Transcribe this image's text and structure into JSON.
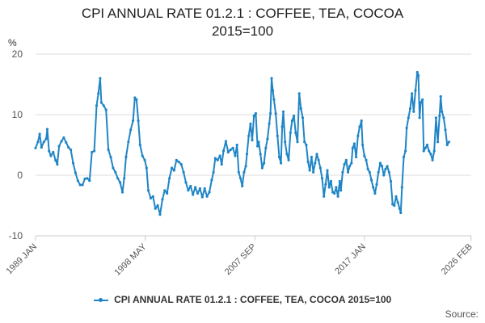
{
  "chart_data": {
    "type": "line",
    "title_line1": "CPI ANNUAL RATE 01.2.1 : COFFEE, TEA, COCOA",
    "title_line2": "2015=100",
    "ylabel": "%",
    "ylim": [
      -10,
      20
    ],
    "yticks": [
      {
        "value": -10,
        "label": "-10"
      },
      {
        "value": 0,
        "label": "0"
      },
      {
        "value": 10,
        "label": "10"
      },
      {
        "value": 20,
        "label": "20"
      }
    ],
    "xlim": [
      1989.0,
      2026.1
    ],
    "xticks": [
      {
        "value": 1989.0,
        "label": "1989 JAN"
      },
      {
        "value": 1998.33,
        "label": "1998 MAY"
      },
      {
        "value": 2007.67,
        "label": "2007 SEP"
      },
      {
        "value": 2017.0,
        "label": "2017 JAN"
      },
      {
        "value": 2026.08,
        "label": "2026 FEB"
      }
    ],
    "series": [
      {
        "name": "CPI ANNUAL RATE 01.2.1 : COFFEE, TEA, COCOA 2015=100",
        "color": "#1f85c6",
        "points": [
          [
            1989.0,
            4.5
          ],
          [
            1989.2,
            5.5
          ],
          [
            1989.35,
            6.8
          ],
          [
            1989.5,
            4.6
          ],
          [
            1989.7,
            5.5
          ],
          [
            1989.9,
            6.0
          ],
          [
            1990.0,
            7.6
          ],
          [
            1990.15,
            4.0
          ],
          [
            1990.3,
            3.2
          ],
          [
            1990.5,
            3.8
          ],
          [
            1990.7,
            2.5
          ],
          [
            1990.85,
            1.8
          ],
          [
            1991.0,
            4.8
          ],
          [
            1991.2,
            5.6
          ],
          [
            1991.4,
            6.2
          ],
          [
            1991.6,
            5.4
          ],
          [
            1991.8,
            4.6
          ],
          [
            1992.0,
            4.2
          ],
          [
            1992.2,
            2.0
          ],
          [
            1992.4,
            0.4
          ],
          [
            1992.6,
            -0.9
          ],
          [
            1992.8,
            -1.6
          ],
          [
            1993.0,
            -1.6
          ],
          [
            1993.2,
            -0.6
          ],
          [
            1993.4,
            -0.5
          ],
          [
            1993.6,
            -0.9
          ],
          [
            1993.8,
            3.8
          ],
          [
            1994.0,
            4.0
          ],
          [
            1994.2,
            11.5
          ],
          [
            1994.35,
            13.5
          ],
          [
            1994.5,
            16.0
          ],
          [
            1994.6,
            12.0
          ],
          [
            1994.8,
            11.5
          ],
          [
            1995.0,
            10.8
          ],
          [
            1995.2,
            4.2
          ],
          [
            1995.4,
            3.0
          ],
          [
            1995.6,
            1.2
          ],
          [
            1995.8,
            0.5
          ],
          [
            1996.0,
            -0.5
          ],
          [
            1996.2,
            -1.2
          ],
          [
            1996.4,
            -2.8
          ],
          [
            1996.55,
            -0.5
          ],
          [
            1996.7,
            3.0
          ],
          [
            1996.9,
            5.5
          ],
          [
            1997.1,
            7.5
          ],
          [
            1997.3,
            9.0
          ],
          [
            1997.45,
            12.8
          ],
          [
            1997.6,
            12.5
          ],
          [
            1997.75,
            9.0
          ],
          [
            1997.9,
            5.0
          ],
          [
            1998.1,
            3.2
          ],
          [
            1998.3,
            2.5
          ],
          [
            1998.45,
            1.2
          ],
          [
            1998.6,
            -2.5
          ],
          [
            1998.8,
            -3.8
          ],
          [
            1999.0,
            -3.5
          ],
          [
            1999.2,
            -5.5
          ],
          [
            1999.4,
            -5.0
          ],
          [
            1999.6,
            -6.5
          ],
          [
            1999.8,
            -4.0
          ],
          [
            2000.0,
            -2.5
          ],
          [
            2000.2,
            -3.0
          ],
          [
            2000.4,
            -0.5
          ],
          [
            2000.6,
            1.2
          ],
          [
            2000.8,
            0.8
          ],
          [
            2001.0,
            2.5
          ],
          [
            2001.2,
            2.2
          ],
          [
            2001.4,
            1.8
          ],
          [
            2001.6,
            0.5
          ],
          [
            2001.8,
            -1.2
          ],
          [
            2002.0,
            -2.5
          ],
          [
            2002.2,
            -1.8
          ],
          [
            2002.4,
            -3.2
          ],
          [
            2002.6,
            -2.0
          ],
          [
            2002.8,
            -3.0
          ],
          [
            2003.0,
            -2.2
          ],
          [
            2003.2,
            -3.6
          ],
          [
            2003.4,
            -2.2
          ],
          [
            2003.6,
            -3.5
          ],
          [
            2003.8,
            -2.8
          ],
          [
            2004.0,
            -0.8
          ],
          [
            2004.15,
            0.5
          ],
          [
            2004.3,
            2.8
          ],
          [
            2004.5,
            2.5
          ],
          [
            2004.7,
            3.2
          ],
          [
            2004.85,
            1.8
          ],
          [
            2005.0,
            4.0
          ],
          [
            2005.2,
            5.6
          ],
          [
            2005.4,
            3.8
          ],
          [
            2005.6,
            4.2
          ],
          [
            2005.8,
            4.5
          ],
          [
            2006.0,
            3.2
          ],
          [
            2006.15,
            5.0
          ],
          [
            2006.3,
            0.5
          ],
          [
            2006.45,
            -0.5
          ],
          [
            2006.6,
            -1.8
          ],
          [
            2006.75,
            0.5
          ],
          [
            2006.9,
            1.5
          ],
          [
            2007.0,
            3.5
          ],
          [
            2007.15,
            6.5
          ],
          [
            2007.3,
            8.5
          ],
          [
            2007.45,
            5.8
          ],
          [
            2007.6,
            9.8
          ],
          [
            2007.75,
            10.2
          ],
          [
            2007.9,
            4.8
          ],
          [
            2008.0,
            5.5
          ],
          [
            2008.15,
            3.5
          ],
          [
            2008.3,
            1.2
          ],
          [
            2008.45,
            2.0
          ],
          [
            2008.6,
            4.5
          ],
          [
            2008.75,
            6.0
          ],
          [
            2008.9,
            8.5
          ],
          [
            2009.0,
            10.2
          ],
          [
            2009.1,
            16.0
          ],
          [
            2009.2,
            14.0
          ],
          [
            2009.3,
            12.5
          ],
          [
            2009.45,
            10.2
          ],
          [
            2009.6,
            6.5
          ],
          [
            2009.75,
            3.0
          ],
          [
            2009.9,
            2.0
          ],
          [
            2010.0,
            8.0
          ],
          [
            2010.1,
            10.5
          ],
          [
            2010.25,
            5.5
          ],
          [
            2010.4,
            3.5
          ],
          [
            2010.55,
            2.5
          ],
          [
            2010.7,
            7.0
          ],
          [
            2010.85,
            9.0
          ],
          [
            2011.0,
            9.8
          ],
          [
            2011.15,
            7.0
          ],
          [
            2011.3,
            5.5
          ],
          [
            2011.45,
            13.5
          ],
          [
            2011.6,
            11.0
          ],
          [
            2011.75,
            9.5
          ],
          [
            2011.9,
            5.5
          ],
          [
            2012.05,
            5.0
          ],
          [
            2012.2,
            2.2
          ],
          [
            2012.35,
            0.8
          ],
          [
            2012.5,
            3.0
          ],
          [
            2012.65,
            0.5
          ],
          [
            2012.8,
            2.0
          ],
          [
            2012.95,
            3.5
          ],
          [
            2013.1,
            2.5
          ],
          [
            2013.25,
            1.2
          ],
          [
            2013.4,
            -0.5
          ],
          [
            2013.55,
            -3.5
          ],
          [
            2013.7,
            -1.5
          ],
          [
            2013.85,
            0.8
          ],
          [
            2014.0,
            -2.0
          ],
          [
            2014.15,
            -1.0
          ],
          [
            2014.3,
            -2.8
          ],
          [
            2014.45,
            -3.0
          ],
          [
            2014.6,
            -2.0
          ],
          [
            2014.75,
            -3.5
          ],
          [
            2014.9,
            -1.0
          ],
          [
            2015.0,
            -2.5
          ],
          [
            2015.15,
            0.5
          ],
          [
            2015.3,
            1.8
          ],
          [
            2015.45,
            2.5
          ],
          [
            2015.6,
            0.5
          ],
          [
            2015.75,
            1.5
          ],
          [
            2015.9,
            2.0
          ],
          [
            2016.0,
            4.5
          ],
          [
            2016.15,
            5.2
          ],
          [
            2016.3,
            3.0
          ],
          [
            2016.45,
            6.5
          ],
          [
            2016.6,
            8.0
          ],
          [
            2016.75,
            9.0
          ],
          [
            2016.85,
            5.0
          ],
          [
            2017.0,
            3.2
          ],
          [
            2017.15,
            2.5
          ],
          [
            2017.3,
            1.0
          ],
          [
            2017.45,
            0.5
          ],
          [
            2017.6,
            -0.8
          ],
          [
            2017.75,
            -2.0
          ],
          [
            2017.9,
            -3.0
          ],
          [
            2018.05,
            -1.5
          ],
          [
            2018.2,
            0.5
          ],
          [
            2018.35,
            2.0
          ],
          [
            2018.5,
            1.5
          ],
          [
            2018.65,
            0.0
          ],
          [
            2018.8,
            1.0
          ],
          [
            2018.95,
            1.5
          ],
          [
            2019.1,
            0.5
          ],
          [
            2019.25,
            -1.0
          ],
          [
            2019.4,
            -4.8
          ],
          [
            2019.55,
            -5.0
          ],
          [
            2019.7,
            -3.5
          ],
          [
            2019.85,
            -4.5
          ],
          [
            2020.0,
            -5.5
          ],
          [
            2020.1,
            -6.2
          ],
          [
            2020.2,
            -2.0
          ],
          [
            2020.35,
            3.0
          ],
          [
            2020.5,
            4.0
          ],
          [
            2020.6,
            7.8
          ],
          [
            2020.75,
            9.5
          ],
          [
            2020.9,
            11.0
          ],
          [
            2021.05,
            13.5
          ],
          [
            2021.2,
            10.5
          ],
          [
            2021.35,
            14.0
          ],
          [
            2021.5,
            17.0
          ],
          [
            2021.6,
            16.5
          ],
          [
            2021.7,
            9.5
          ],
          [
            2021.8,
            12.0
          ],
          [
            2021.95,
            12.5
          ],
          [
            2022.05,
            4.0
          ],
          [
            2022.2,
            4.5
          ],
          [
            2022.35,
            5.0
          ],
          [
            2022.5,
            4.0
          ],
          [
            2022.65,
            3.5
          ],
          [
            2022.8,
            2.5
          ],
          [
            2022.95,
            4.0
          ],
          [
            2023.1,
            9.5
          ],
          [
            2023.25,
            5.5
          ],
          [
            2023.4,
            9.8
          ],
          [
            2023.5,
            13.0
          ],
          [
            2023.6,
            10.5
          ],
          [
            2023.75,
            9.5
          ],
          [
            2023.9,
            7.5
          ],
          [
            2024.05,
            5.0
          ],
          [
            2024.2,
            5.5
          ]
        ]
      }
    ],
    "legend_label": "CPI ANNUAL RATE 01.2.1 : COFFEE, TEA, COCOA 2015=100",
    "source_label": "Source:"
  }
}
